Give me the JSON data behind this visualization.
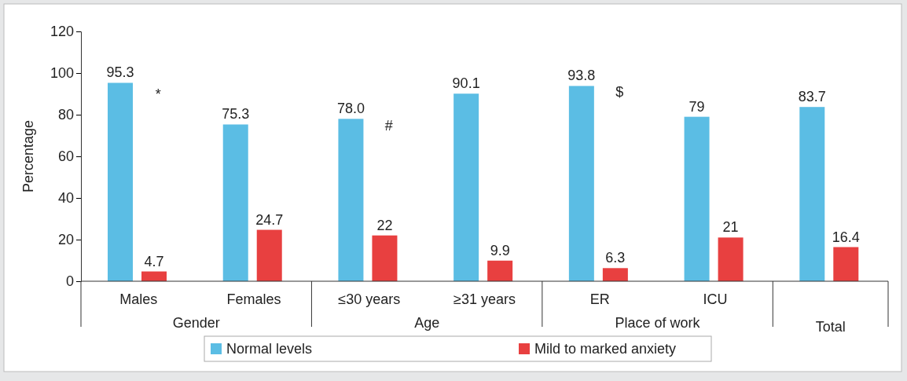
{
  "chart_data": {
    "type": "bar",
    "ylabel": "Percentage",
    "categories": [
      "Males",
      "Females",
      "≤30 years",
      "≥31 years",
      "ER",
      "ICU",
      null
    ],
    "series": [
      {
        "name": "Normal levels",
        "color": "#5bbde4",
        "values": [
          95.3,
          75.3,
          78.0,
          90.1,
          93.8,
          79,
          83.7
        ],
        "value_labels": [
          "95.3",
          "75.3",
          "78.0",
          "90.1",
          "93.8",
          "79",
          "83.7"
        ]
      },
      {
        "name": "Mild to marked anxiety",
        "color": "#e84040",
        "values": [
          4.7,
          24.7,
          22,
          9.9,
          6.3,
          21,
          16.4
        ],
        "value_labels": [
          "4.7",
          "24.7",
          "22",
          "9.9",
          "6.3",
          "21",
          "16.4"
        ]
      }
    ],
    "ylim": [
      0,
      120
    ],
    "yticks": [
      0,
      20,
      40,
      60,
      80,
      100,
      120
    ],
    "grid": false,
    "legend": "bottom",
    "annotations": [
      "Gender",
      "Age",
      "Place of work",
      "Total",
      "*",
      "#",
      "$"
    ]
  }
}
